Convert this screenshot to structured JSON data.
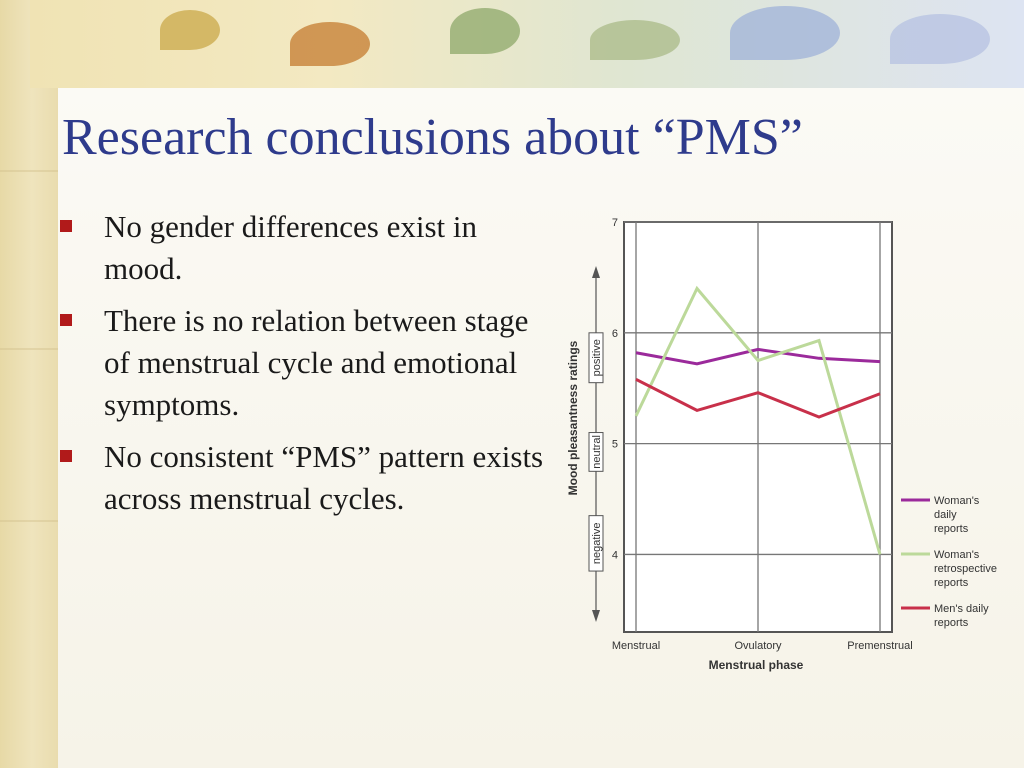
{
  "slide": {
    "title": "Research conclusions about “PMS”",
    "bullets": [
      "No gender differences exist in mood.",
      "There is no relation between stage of menstrual cycle and emotional symptoms.",
      "No consistent “PMS” pattern exists across menstrual cycles."
    ]
  },
  "colors": {
    "title": "#2e3b8c",
    "bullet": "#b11a1a",
    "womens_daily": "#9b2a9b",
    "womens_retrospective": "#bcd99a",
    "mens_daily": "#c8304a"
  },
  "chart_data": {
    "type": "line",
    "x_categories": [
      "Menstrual",
      "Ovulatory",
      "Premenstrual"
    ],
    "x_points": [
      0,
      0.5,
      1,
      1.5,
      2
    ],
    "xlabel": "Menstrual phase",
    "ylabel": "Mood pleasantness ratings",
    "ylim": [
      3.3,
      7
    ],
    "yticks": [
      4,
      5,
      6,
      7
    ],
    "band_labels": [
      "positive",
      "neutral",
      "negative"
    ],
    "grid": true,
    "legend_position": "right",
    "series": [
      {
        "name": "Woman's daily reports",
        "color_key": "womens_daily",
        "values": [
          5.82,
          5.72,
          5.85,
          5.77,
          5.74
        ]
      },
      {
        "name": "Woman's retrospective reports",
        "color_key": "womens_retrospective",
        "values": [
          5.25,
          6.4,
          5.75,
          5.93,
          4.0
        ]
      },
      {
        "name": "Men's daily reports",
        "color_key": "mens_daily",
        "values": [
          5.58,
          5.3,
          5.46,
          5.24,
          5.45
        ]
      }
    ]
  }
}
